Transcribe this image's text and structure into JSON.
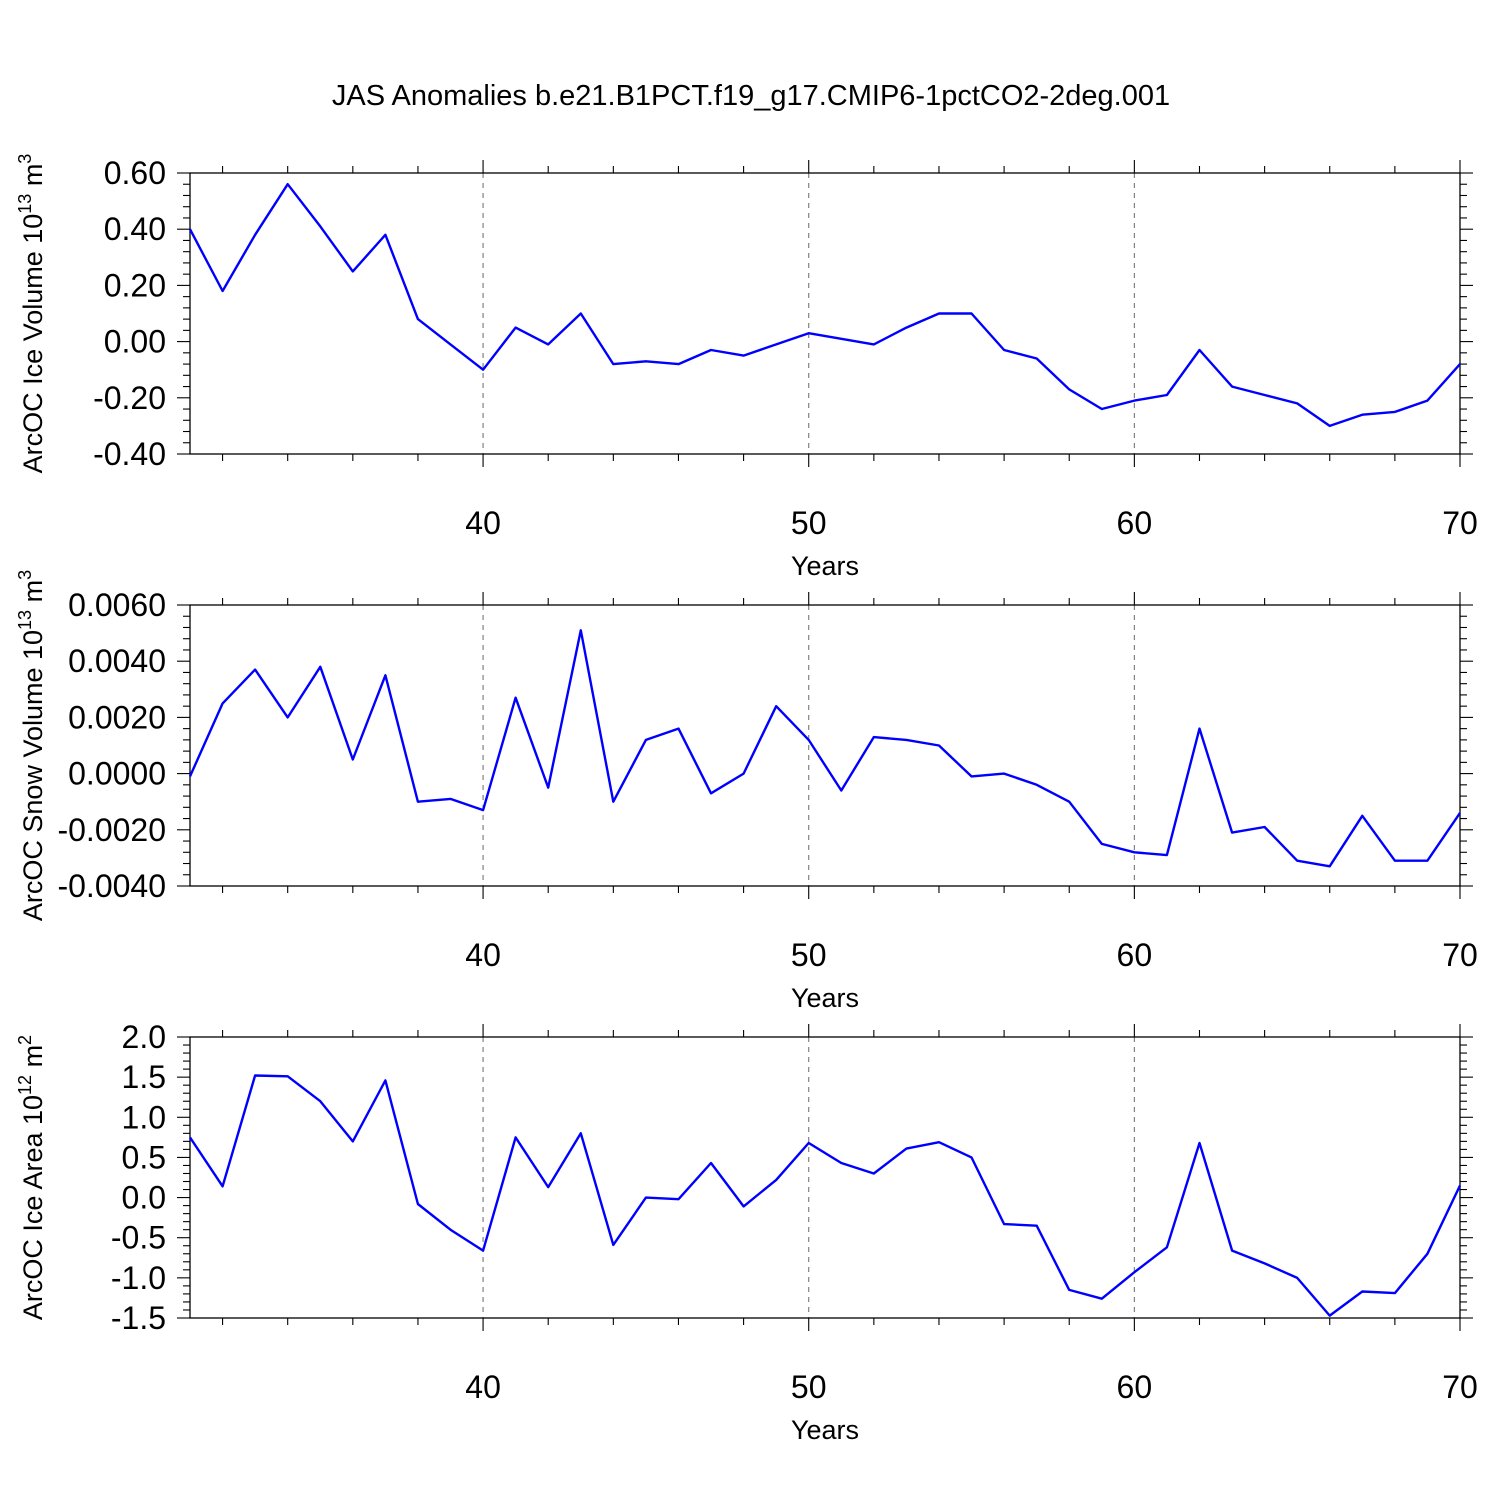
{
  "title": "JAS Anomalies b.e21.B1PCT.f19_g17.CMIP6-1pctCO2-2deg.001",
  "colors": {
    "line": "#0000ff",
    "frame": "#000000",
    "grid": "#777777"
  },
  "chart_data": [
    {
      "type": "line",
      "ylabel": "ArcOC Ice Volume 10",
      "ylabel_exp": "13",
      "ylabel_unit": " m",
      "ylabel_unit_exp": "3",
      "xlabel": "Years",
      "xlim": [
        31,
        70
      ],
      "ylim": [
        -0.4,
        0.6
      ],
      "yticks": [
        "-0.40",
        "-0.20",
        "0.00",
        "0.20",
        "0.40",
        "0.60"
      ],
      "ytick_values": [
        -0.4,
        -0.2,
        0.0,
        0.2,
        0.4,
        0.6
      ],
      "xticks": [
        "40",
        "50",
        "60",
        "70"
      ],
      "xtick_values": [
        40,
        50,
        60,
        70
      ],
      "grid_x": [
        40,
        50,
        60
      ],
      "x": [
        31,
        32,
        33,
        34,
        35,
        36,
        37,
        38,
        39,
        40,
        41,
        42,
        43,
        44,
        45,
        46,
        47,
        48,
        49,
        50,
        51,
        52,
        53,
        54,
        55,
        56,
        57,
        58,
        59,
        60,
        61,
        62,
        63,
        64,
        65,
        66,
        67,
        68,
        69,
        70
      ],
      "y": [
        0.4,
        0.18,
        0.38,
        0.56,
        0.41,
        0.25,
        0.38,
        0.08,
        -0.01,
        -0.1,
        0.05,
        -0.01,
        0.1,
        -0.08,
        -0.07,
        -0.08,
        -0.03,
        -0.05,
        -0.01,
        0.03,
        0.01,
        -0.01,
        0.05,
        0.1,
        0.1,
        -0.03,
        -0.06,
        -0.17,
        -0.24,
        -0.21,
        -0.19,
        -0.03,
        -0.16,
        -0.19,
        -0.22,
        -0.3,
        -0.26,
        -0.25,
        -0.21,
        -0.08
      ]
    },
    {
      "type": "line",
      "ylabel": "ArcOC Snow Volume 10",
      "ylabel_exp": "13",
      "ylabel_unit": " m",
      "ylabel_unit_exp": "3",
      "xlabel": "Years",
      "xlim": [
        31,
        70
      ],
      "ylim": [
        -0.004,
        0.006
      ],
      "yticks": [
        "-0.0040",
        "-0.0020",
        "0.0000",
        "0.0020",
        "0.0040",
        "0.0060"
      ],
      "ytick_values": [
        -0.004,
        -0.002,
        0.0,
        0.002,
        0.004,
        0.006
      ],
      "xticks": [
        "40",
        "50",
        "60",
        "70"
      ],
      "xtick_values": [
        40,
        50,
        60,
        70
      ],
      "grid_x": [
        40,
        50,
        60
      ],
      "x": [
        31,
        32,
        33,
        34,
        35,
        36,
        37,
        38,
        39,
        40,
        41,
        42,
        43,
        44,
        45,
        46,
        47,
        48,
        49,
        50,
        51,
        52,
        53,
        54,
        55,
        56,
        57,
        58,
        59,
        60,
        61,
        62,
        63,
        64,
        65,
        66,
        67,
        68,
        69,
        70
      ],
      "y": [
        -0.0001,
        0.0025,
        0.0037,
        0.002,
        0.0038,
        0.0005,
        0.0035,
        -0.001,
        -0.0009,
        -0.0013,
        0.0027,
        -0.0005,
        0.0051,
        -0.001,
        0.0012,
        0.0016,
        -0.0007,
        0.0,
        0.0024,
        0.0012,
        -0.0006,
        0.0013,
        0.0012,
        0.001,
        -0.0001,
        0.0,
        -0.0004,
        -0.001,
        -0.0025,
        -0.0028,
        -0.0029,
        0.0016,
        -0.0021,
        -0.0019,
        -0.0031,
        -0.0033,
        -0.0015,
        -0.0031,
        -0.0031,
        -0.0014
      ]
    },
    {
      "type": "line",
      "ylabel": "ArcOC Ice Area 10",
      "ylabel_exp": "12",
      "ylabel_unit": " m",
      "ylabel_unit_exp": "2",
      "xlabel": "Years",
      "xlim": [
        31,
        70
      ],
      "ylim": [
        -1.5,
        2.0
      ],
      "yticks": [
        "-1.5",
        "-1.0",
        "-0.5",
        "0.0",
        "0.5",
        "1.0",
        "1.5",
        "2.0"
      ],
      "ytick_values": [
        -1.5,
        -1.0,
        -0.5,
        0.0,
        0.5,
        1.0,
        1.5,
        2.0
      ],
      "xticks": [
        "40",
        "50",
        "60",
        "70"
      ],
      "xtick_values": [
        40,
        50,
        60,
        70
      ],
      "grid_x": [
        40,
        50,
        60
      ],
      "x": [
        31,
        32,
        33,
        34,
        35,
        36,
        37,
        38,
        39,
        40,
        41,
        42,
        43,
        44,
        45,
        46,
        47,
        48,
        49,
        50,
        51,
        52,
        53,
        54,
        55,
        56,
        57,
        58,
        59,
        60,
        61,
        62,
        63,
        64,
        65,
        66,
        67,
        68,
        69,
        70
      ],
      "y": [
        0.75,
        0.14,
        1.52,
        1.51,
        1.2,
        0.7,
        1.46,
        -0.08,
        -0.4,
        -0.66,
        0.75,
        0.13,
        0.8,
        -0.59,
        0.0,
        -0.02,
        0.43,
        -0.11,
        0.22,
        0.68,
        0.43,
        0.3,
        0.61,
        0.69,
        0.5,
        -0.33,
        -0.35,
        -1.15,
        -1.26,
        -0.93,
        -0.62,
        0.68,
        -0.66,
        -0.82,
        -1.0,
        -1.47,
        -1.17,
        -1.19,
        -0.7,
        0.15
      ]
    }
  ]
}
